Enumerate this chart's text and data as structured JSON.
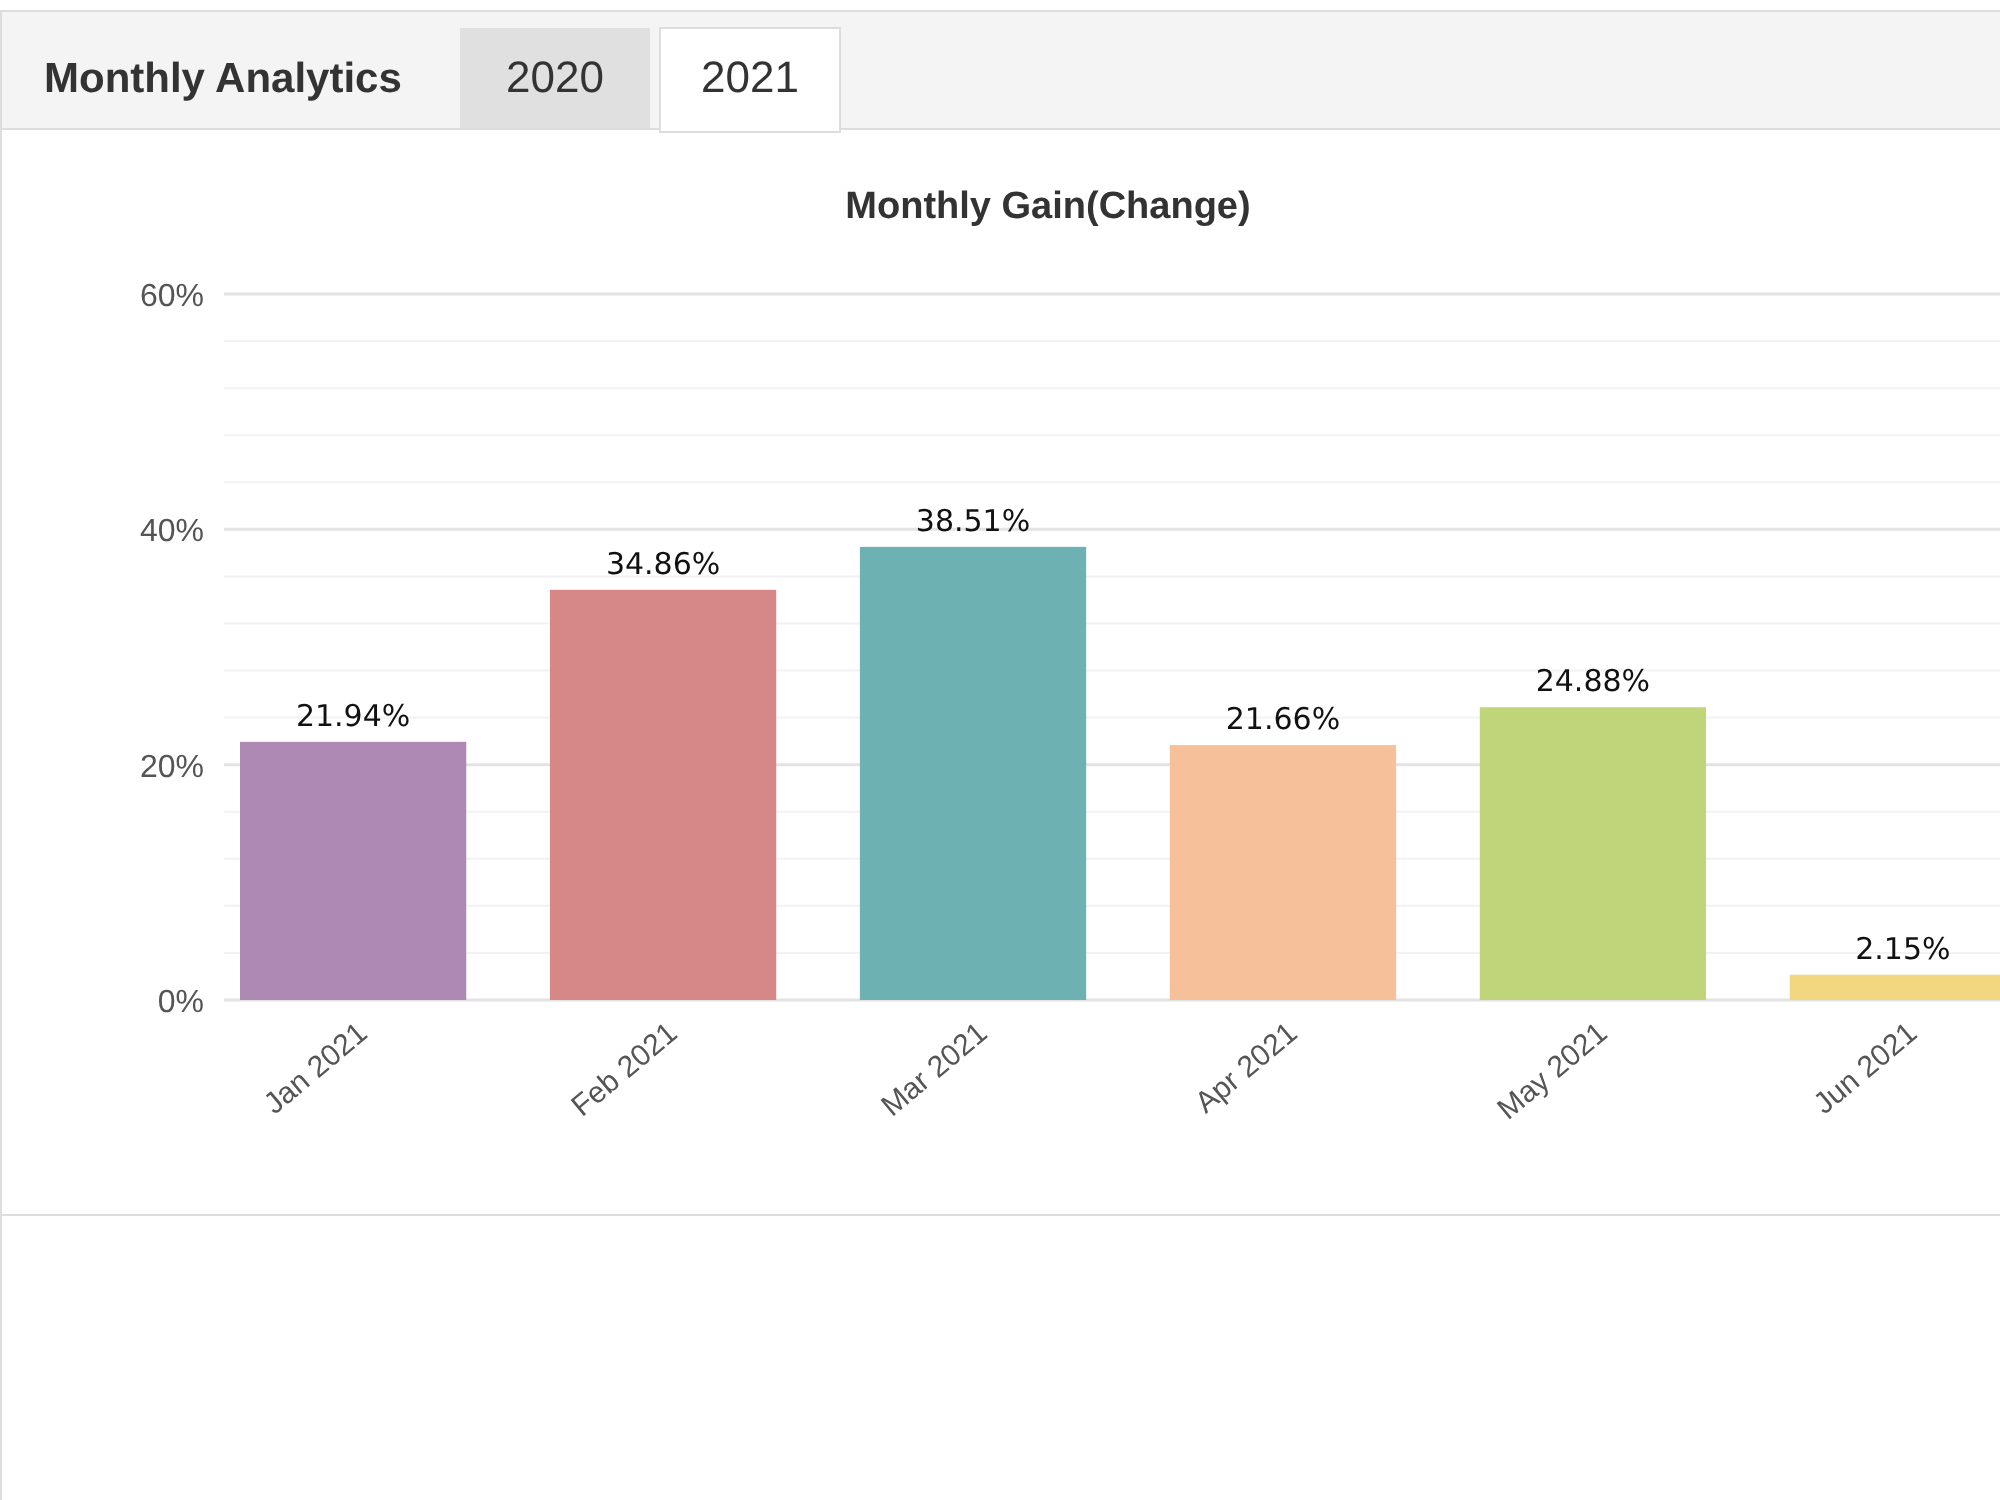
{
  "chart_data": {
    "type": "bar",
    "title": "Monthly Gain(Change)",
    "annotations": [
      "Monthly Analytics",
      "2020",
      "2021"
    ],
    "categories": [
      "Jan 2021",
      "Feb 2021",
      "Mar 2021",
      "Apr 2021",
      "May 2021",
      "Jun 2021"
    ],
    "values": [
      21.94,
      34.86,
      38.51,
      21.66,
      24.88,
      2.15
    ],
    "value_labels": [
      "21.94%",
      "34.86%",
      "38.51%",
      "21.66%",
      "24.88%",
      "2.15%"
    ],
    "colors": [
      "#ad89b3",
      "#d58885",
      "#6eb1b3",
      "#f5c09a",
      "#c0d57a",
      "#f2d680"
    ],
    "ylim": [
      0,
      60
    ],
    "yticks": [
      {
        "value": 0,
        "label": "0%"
      },
      {
        "value": 4,
        "label": null
      },
      {
        "value": 8,
        "label": null
      },
      {
        "value": 12,
        "label": null
      },
      {
        "value": 16,
        "label": null
      },
      {
        "value": 20,
        "label": "20%"
      },
      {
        "value": 24,
        "label": null
      },
      {
        "value": 28,
        "label": null
      },
      {
        "value": 32,
        "label": null
      },
      {
        "value": 36,
        "label": null
      },
      {
        "value": 40,
        "label": "40%"
      },
      {
        "value": 44,
        "label": null
      },
      {
        "value": 48,
        "label": null
      },
      {
        "value": 52,
        "label": null
      },
      {
        "value": 56,
        "label": null
      },
      {
        "value": 60,
        "label": "60%"
      }
    ],
    "grid": "y"
  }
}
